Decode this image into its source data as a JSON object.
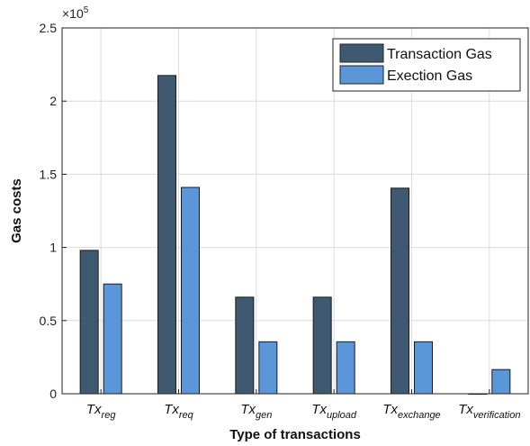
{
  "chart_data": {
    "type": "bar",
    "categories": [
      {
        "main": "Tx",
        "sub": "reg"
      },
      {
        "main": "Tx",
        "sub": "req"
      },
      {
        "main": "Tx",
        "sub": "gen"
      },
      {
        "main": "Tx",
        "sub": "upload"
      },
      {
        "main": "Tx",
        "sub": "exchange"
      },
      {
        "main": "Tx",
        "sub": "verification"
      }
    ],
    "series": [
      {
        "name": "Transaction Gas",
        "color": "#3f5a70",
        "values": [
          98000,
          217500,
          66000,
          66000,
          140500,
          0
        ]
      },
      {
        "name": "Exection Gas",
        "color": "#5b97d8",
        "values": [
          75000,
          141000,
          35500,
          35500,
          35500,
          16500
        ]
      }
    ],
    "xlabel": "Type of transactions",
    "ylabel": "Gas costs",
    "ylim": [
      0,
      250000
    ],
    "y_ticks": [
      "0",
      "0.5",
      "1",
      "1.5",
      "2",
      "2.5"
    ],
    "y_tick_values": [
      0,
      50000,
      100000,
      150000,
      200000,
      250000
    ],
    "y_multiplier": {
      "base": "×10",
      "exponent": "5"
    },
    "grid": true,
    "legend_position": "top-right"
  }
}
